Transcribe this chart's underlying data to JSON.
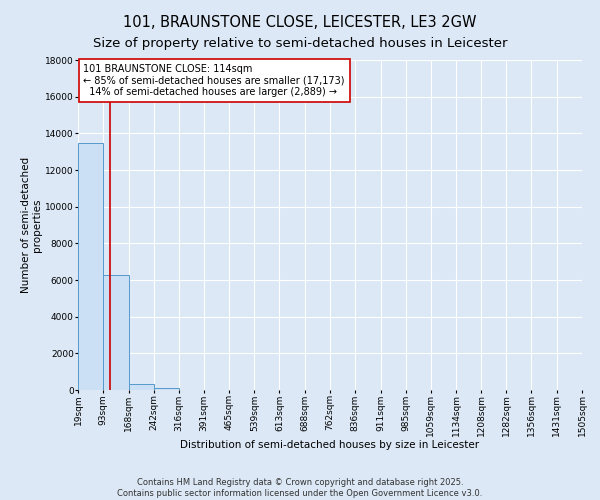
{
  "title": "101, BRAUNSTONE CLOSE, LEICESTER, LE3 2GW",
  "subtitle": "Size of property relative to semi-detached houses in Leicester",
  "xlabel": "Distribution of semi-detached houses by size in Leicester",
  "ylabel": "Number of semi-detached\nproperties",
  "bin_edges": [
    19,
    93,
    168,
    242,
    316,
    391,
    465,
    539,
    613,
    688,
    762,
    836,
    911,
    985,
    1059,
    1134,
    1208,
    1282,
    1356,
    1431,
    1505
  ],
  "bar_heights": [
    13500,
    6300,
    350,
    120,
    0,
    0,
    0,
    0,
    0,
    0,
    0,
    0,
    0,
    0,
    0,
    0,
    0,
    0,
    0,
    0
  ],
  "bar_color": "#cce0f5",
  "bar_edge_color": "#5599cc",
  "property_size": 114,
  "property_line_color": "#cc0000",
  "annotation_line1": "101 BRAUNSTONE CLOSE: 114sqm",
  "annotation_line2": "← 85% of semi-detached houses are smaller (17,173)",
  "annotation_line3": "  14% of semi-detached houses are larger (2,889) →",
  "annotation_box_color": "#ffffff",
  "annotation_box_edge": "#cc0000",
  "ylim": [
    0,
    18000
  ],
  "yticks": [
    0,
    2000,
    4000,
    6000,
    8000,
    10000,
    12000,
    14000,
    16000,
    18000
  ],
  "background_color": "#dce8f5",
  "grid_color": "#ffffff",
  "footer_text": "Contains HM Land Registry data © Crown copyright and database right 2025.\nContains public sector information licensed under the Open Government Licence v3.0.",
  "title_fontsize": 10.5,
  "subtitle_fontsize": 9.5,
  "axis_label_fontsize": 7.5,
  "tick_fontsize": 6.5,
  "annotation_fontsize": 7,
  "footer_fontsize": 6
}
